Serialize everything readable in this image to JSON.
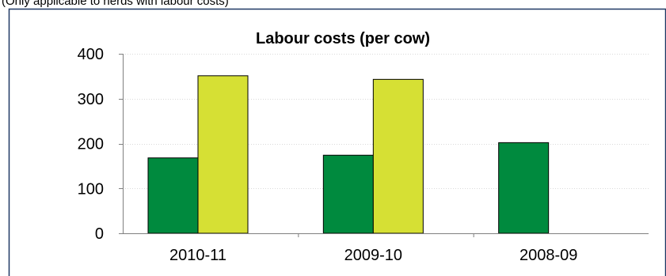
{
  "header_fragment": "(Only applicable to herds with labour costs)",
  "chart_data": {
    "type": "bar",
    "title": "Labour costs (per cow)",
    "xlabel": "",
    "ylabel": "",
    "categories": [
      "2010-11",
      "2009-10",
      "2008-09"
    ],
    "ylim": [
      0,
      400
    ],
    "yticks": [
      0,
      100,
      200,
      300,
      400
    ],
    "grid": true,
    "legend": "none",
    "series": [
      {
        "values": [
          168,
          174,
          202
        ],
        "color": "#008a3e"
      },
      {
        "values": [
          351,
          343,
          null
        ],
        "color": "#d6e034"
      }
    ]
  }
}
